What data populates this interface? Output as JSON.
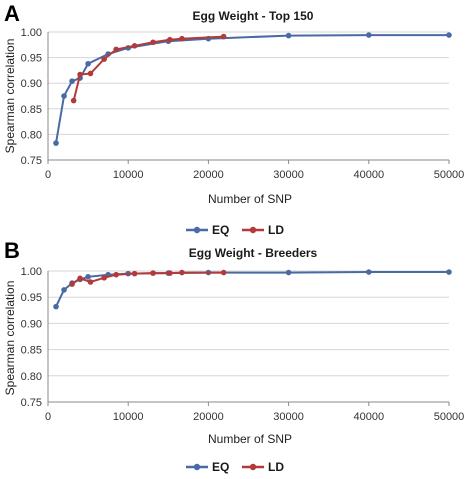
{
  "chart_data": [
    {
      "panel": "A",
      "type": "line",
      "title": "Egg Weight - Top 150",
      "xlabel": "Number of SNP",
      "ylabel": "Spearman correlation",
      "xlim": [
        0,
        50000
      ],
      "ylim": [
        0.75,
        1.0
      ],
      "xticks": [
        0,
        10000,
        20000,
        30000,
        40000,
        50000
      ],
      "yticks": [
        0.75,
        0.8,
        0.85,
        0.9,
        0.95,
        1.0
      ],
      "ytick_labels": [
        "0.75",
        "0.80",
        "0.85",
        "0.90",
        "0.95",
        "1.00"
      ],
      "grid": "horizontal",
      "legend": "bottom",
      "series": [
        {
          "name": "EQ",
          "color": "#4a6aa5",
          "points": [
            [
              1000,
              0.783
            ],
            [
              2000,
              0.875
            ],
            [
              3000,
              0.904
            ],
            [
              4000,
              0.91
            ],
            [
              5000,
              0.938
            ],
            [
              7500,
              0.957
            ],
            [
              10000,
              0.969
            ],
            [
              15000,
              0.982
            ],
            [
              20000,
              0.987
            ],
            [
              30000,
              0.993
            ],
            [
              40000,
              0.994
            ],
            [
              50000,
              0.994
            ]
          ]
        },
        {
          "name": "LD",
          "color": "#b23a3a",
          "points": [
            [
              3200,
              0.866
            ],
            [
              4000,
              0.917
            ],
            [
              5300,
              0.919
            ],
            [
              7000,
              0.947
            ],
            [
              8500,
              0.966
            ],
            [
              10800,
              0.973
            ],
            [
              13100,
              0.98
            ],
            [
              15200,
              0.985
            ],
            [
              16700,
              0.987
            ],
            [
              21900,
              0.991
            ]
          ]
        }
      ]
    },
    {
      "panel": "B",
      "type": "line",
      "title": "Egg Weight - Breeders",
      "xlabel": "Number of SNP",
      "ylabel": "Spearman correlation",
      "xlim": [
        0,
        50000
      ],
      "ylim": [
        0.75,
        1.0
      ],
      "xticks": [
        0,
        10000,
        20000,
        30000,
        40000,
        50000
      ],
      "yticks": [
        0.75,
        0.8,
        0.85,
        0.9,
        0.95,
        1.0
      ],
      "ytick_labels": [
        "0.75",
        "0.80",
        "0.85",
        "0.90",
        "0.95",
        "1.00"
      ],
      "grid": "horizontal",
      "legend": "bottom",
      "series": [
        {
          "name": "EQ",
          "color": "#4a6aa5",
          "points": [
            [
              1000,
              0.932
            ],
            [
              2000,
              0.964
            ],
            [
              3000,
              0.977
            ],
            [
              4000,
              0.984
            ],
            [
              5000,
              0.989
            ],
            [
              7500,
              0.993
            ],
            [
              10000,
              0.995
            ],
            [
              15000,
              0.996
            ],
            [
              20000,
              0.997
            ],
            [
              30000,
              0.997
            ],
            [
              40000,
              0.998
            ],
            [
              50000,
              0.998
            ]
          ]
        },
        {
          "name": "LD",
          "color": "#b23a3a",
          "points": [
            [
              3000,
              0.975
            ],
            [
              4000,
              0.986
            ],
            [
              5300,
              0.979
            ],
            [
              7000,
              0.987
            ],
            [
              8500,
              0.993
            ],
            [
              10800,
              0.995
            ],
            [
              13100,
              0.996
            ],
            [
              15200,
              0.996
            ],
            [
              16700,
              0.997
            ],
            [
              21900,
              0.997
            ]
          ]
        }
      ]
    }
  ]
}
